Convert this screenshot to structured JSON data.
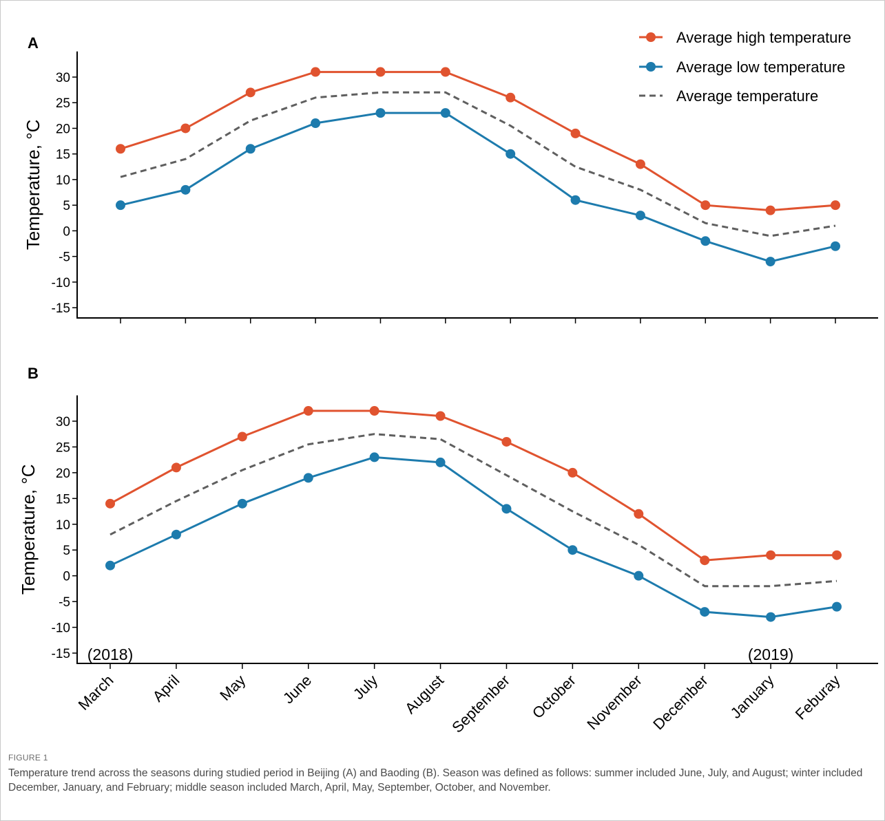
{
  "figure": {
    "label": "FIGURE 1",
    "caption": "Temperature trend across the seasons during studied period in Beijing (A) and Baoding (B). Season was defined as follows: summer included June, July, and August; winter included December, January, and February; middle season included March, April, May, September, October, and November."
  },
  "colors": {
    "high": "#e0532f",
    "low": "#1d7bad",
    "avg": "#5f5f5f",
    "axis": "#000000"
  },
  "chart_data": [
    {
      "type": "line",
      "panel_label": "A",
      "ylabel": "Temperature, °C",
      "xlabel": "",
      "categories": [
        "March",
        "April",
        "May",
        "June",
        "July",
        "August",
        "September",
        "October",
        "November",
        "December",
        "January",
        "Feburay"
      ],
      "ylim": [
        -17,
        35
      ],
      "yticks": [
        -15,
        -10,
        -5,
        0,
        5,
        10,
        15,
        20,
        25,
        30
      ],
      "grid": false,
      "legend": "top-right",
      "series": [
        {
          "name": "Average high temperature",
          "key": "high",
          "style": "line-marker",
          "values": [
            16,
            20,
            27,
            31,
            31,
            31,
            26,
            19,
            13,
            5,
            4,
            5
          ]
        },
        {
          "name": "Average low temperature",
          "key": "low",
          "style": "line-marker",
          "values": [
            5,
            8,
            16,
            21,
            23,
            23,
            15,
            6,
            3,
            -2,
            -6,
            -3
          ]
        },
        {
          "name": "Average temperature",
          "key": "avg",
          "style": "dashed",
          "values": [
            10.5,
            14,
            21.5,
            26,
            27,
            27,
            20.5,
            12.5,
            8,
            1.5,
            -1,
            1
          ]
        }
      ]
    },
    {
      "type": "line",
      "panel_label": "B",
      "ylabel": "Temperature, °C",
      "xlabel": "",
      "categories": [
        "March",
        "April",
        "May",
        "June",
        "July",
        "August",
        "September",
        "October",
        "November",
        "December",
        "January",
        "Feburay"
      ],
      "ylim": [
        -17,
        35
      ],
      "yticks": [
        -15,
        -10,
        -5,
        0,
        5,
        10,
        15,
        20,
        25,
        30
      ],
      "grid": false,
      "annotations": [
        {
          "text": "(2018)",
          "category": "March"
        },
        {
          "text": "(2019)",
          "category": "January"
        }
      ],
      "series": [
        {
          "name": "Average high temperature",
          "key": "high",
          "style": "line-marker",
          "values": [
            14,
            21,
            27,
            32,
            32,
            31,
            26,
            20,
            12,
            3,
            4,
            4
          ]
        },
        {
          "name": "Average low temperature",
          "key": "low",
          "style": "line-marker",
          "values": [
            2,
            8,
            14,
            19,
            23,
            22,
            13,
            5,
            0,
            -7,
            -8,
            -6
          ]
        },
        {
          "name": "Average temperature",
          "key": "avg",
          "style": "dashed",
          "values": [
            8,
            14.5,
            20.5,
            25.5,
            27.5,
            26.5,
            19.5,
            12.5,
            6,
            -2,
            -2,
            -1
          ]
        }
      ]
    }
  ]
}
